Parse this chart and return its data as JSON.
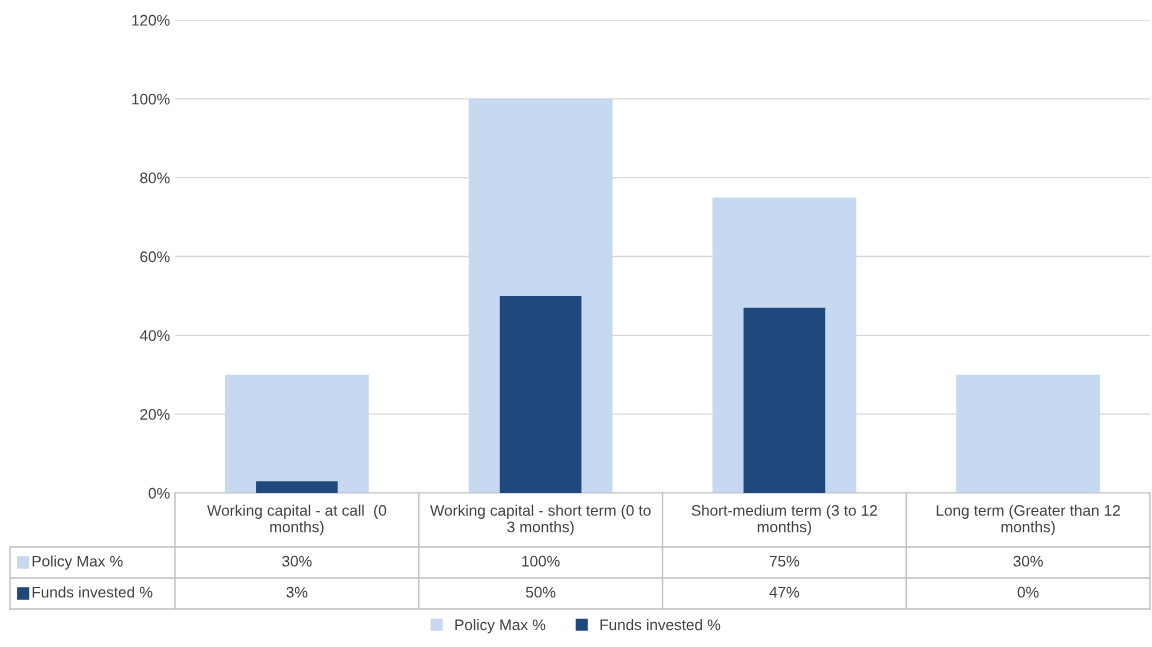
{
  "chart_data": {
    "type": "bar",
    "categories": [
      "Working capital - at call  (0 months)",
      "Working capital - short term (0 to 3 months)",
      "Short-medium term (3 to 12 months)",
      "Long term (Greater than 12 months)"
    ],
    "series": [
      {
        "name": "Policy Max %",
        "color": "#c6d9f1",
        "values": [
          30,
          100,
          75,
          30
        ],
        "value_labels": [
          "30%",
          "100%",
          "75%",
          "30%"
        ]
      },
      {
        "name": "Funds invested %",
        "color": "#1f497d",
        "values": [
          3,
          50,
          47,
          0
        ],
        "value_labels": [
          "3%",
          "50%",
          "47%",
          "0%"
        ]
      }
    ],
    "ylim": [
      0,
      120
    ],
    "yticks": [
      {
        "value": 0,
        "label": "0%"
      },
      {
        "value": 20,
        "label": "20%"
      },
      {
        "value": 40,
        "label": "40%"
      },
      {
        "value": 60,
        "label": "60%"
      },
      {
        "value": 80,
        "label": "80%"
      },
      {
        "value": 100,
        "label": "100%"
      },
      {
        "value": 120,
        "label": "120%"
      }
    ],
    "grid": "y",
    "legend": "bottom"
  }
}
